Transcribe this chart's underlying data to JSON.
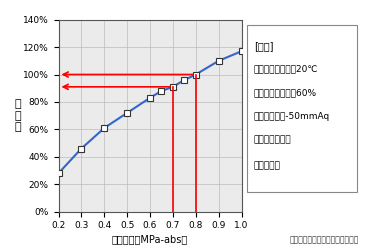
{
  "x": [
    0.2,
    0.3,
    0.4,
    0.5,
    0.6,
    0.65,
    0.7,
    0.75,
    0.8,
    0.9,
    1.0
  ],
  "y": [
    28,
    46,
    61,
    72,
    83,
    88,
    91,
    96,
    100,
    110,
    117
  ],
  "xlim": [
    0.2,
    1.0
  ],
  "ylim": [
    0,
    140
  ],
  "xticks": [
    0.2,
    0.3,
    0.4,
    0.5,
    0.6,
    0.7,
    0.8,
    0.9,
    1.0
  ],
  "yticks": [
    0,
    20,
    40,
    60,
    80,
    100,
    120,
    140
  ],
  "xlabel": "吐出圧力（MPa-abs）",
  "ylabel_chars": [
    "動",
    "力",
    "比"
  ],
  "line_color": "#3366cc",
  "marker": "s",
  "marker_facecolor": "white",
  "marker_edgecolor": "#333333",
  "marker_size": 4,
  "arrow_color": "red",
  "vline_x1": 0.7,
  "vline_x2": 0.8,
  "hline_y1": 91,
  "hline_y2": 100,
  "grid_color": "#bbbbbb",
  "plot_bg": "#ebebeb",
  "conditions_title": "[条件]",
  "conditions": [
    "吸込み空気温度：20℃",
    "吸込み空気湿度：60%",
    "吸込み圧力：-50mmAq",
    "圧縮段数：１段",
    "流量：一定"
  ],
  "source_text": "出典：省エネルギーセンター資料",
  "fig_width": 3.66,
  "fig_height": 2.46,
  "dpi": 100
}
